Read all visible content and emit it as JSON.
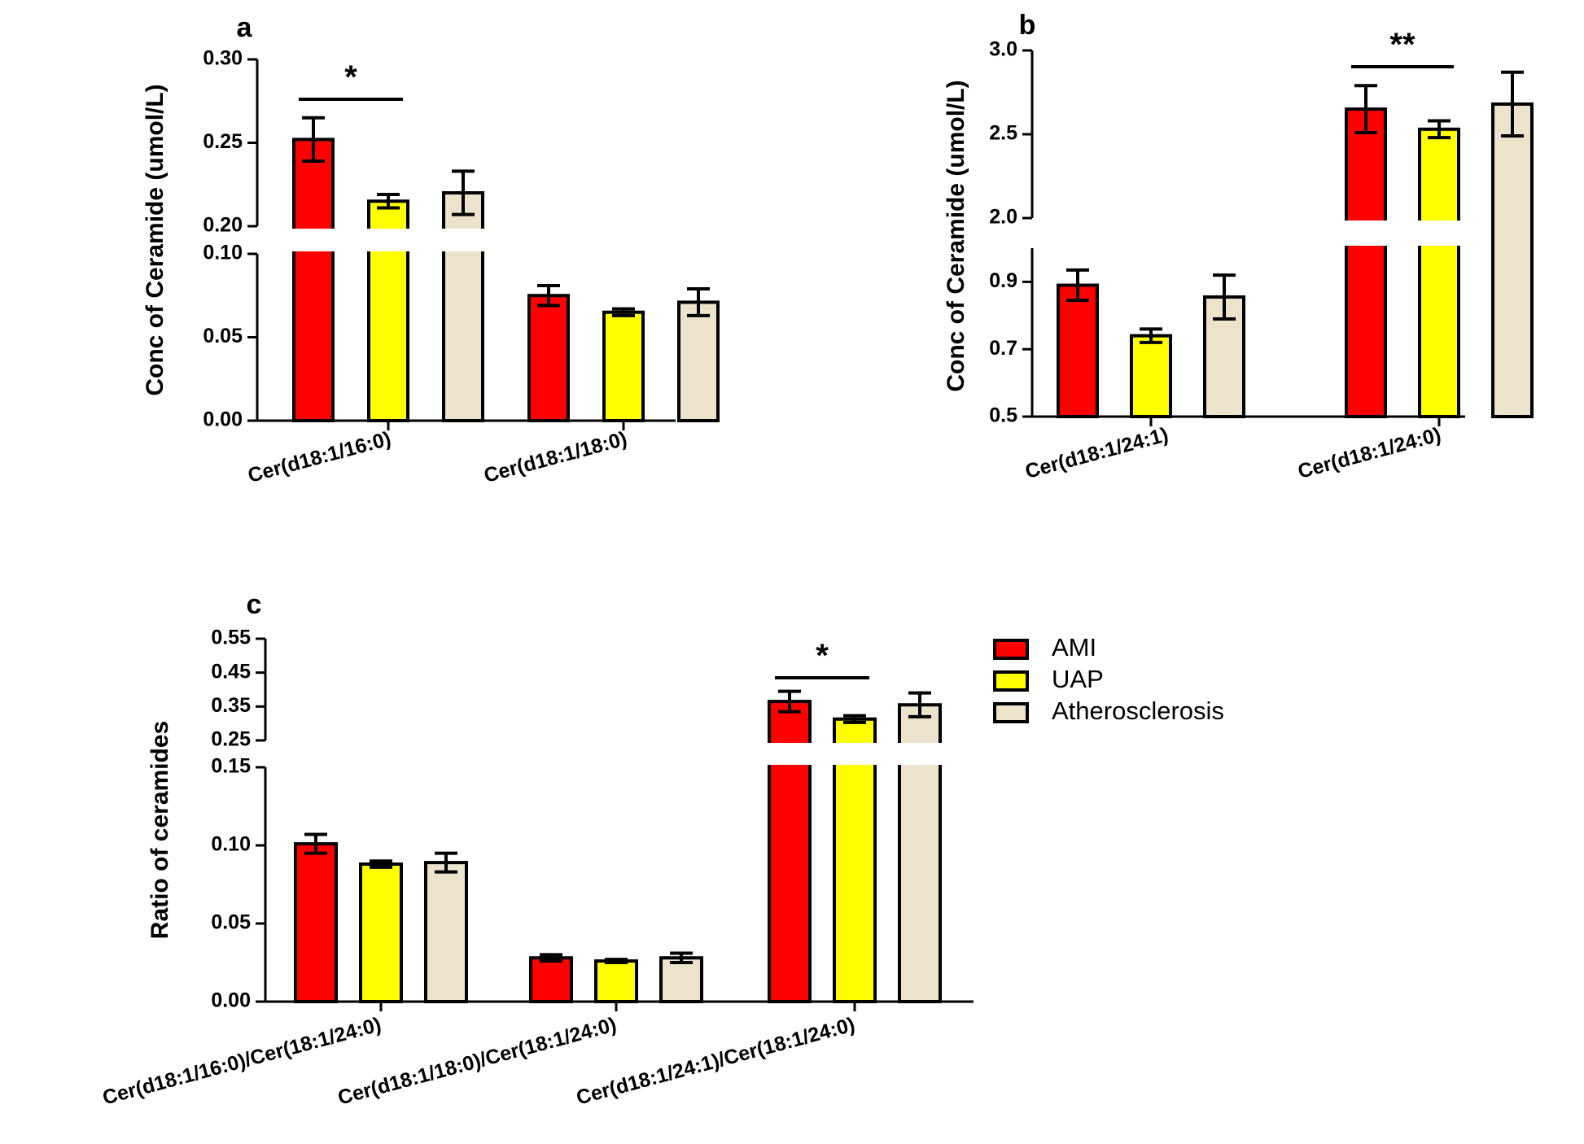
{
  "colors": {
    "AMI": "#ff0000",
    "UAP": "#ffff00",
    "Atherosclerosis": "#ebe3cc",
    "axis": "#000000"
  },
  "legend": {
    "placement": "right of panel c",
    "items": [
      {
        "label": "AMI",
        "color": "#ff0000"
      },
      {
        "label": "UAP",
        "color": "#ffff00"
      },
      {
        "label": "Atherosclerosis",
        "color": "#ebe3cc"
      }
    ]
  },
  "chart_data": [
    {
      "panel": "a",
      "type": "bar",
      "ylabel": "Conc of Ceramide (umol/L)",
      "broken_axis": true,
      "ylim_lower": [
        0,
        0.1
      ],
      "ylim_upper": [
        0.2,
        0.3
      ],
      "yticks_lower": [
        "0.00",
        "0.05",
        "0.10"
      ],
      "yticks_upper": [
        "0.20",
        "0.25",
        "0.30"
      ],
      "categories": [
        "Cer(d18:1/16:0)",
        "Cer(d18:1/18:0)"
      ],
      "series": [
        {
          "name": "AMI",
          "values": [
            0.252,
            0.075
          ],
          "errors": [
            0.013,
            0.006
          ]
        },
        {
          "name": "UAP",
          "values": [
            0.215,
            0.065
          ],
          "errors": [
            0.004,
            0.002
          ]
        },
        {
          "name": "Atherosclerosis",
          "values": [
            0.22,
            0.071
          ],
          "errors": [
            0.013,
            0.008
          ]
        }
      ],
      "significance": [
        {
          "category": 0,
          "from": "AMI",
          "to": "UAP",
          "label": "*"
        }
      ],
      "grid": false
    },
    {
      "panel": "b",
      "type": "bar",
      "ylabel": "Conc of Ceramide (umol/L)",
      "broken_axis": true,
      "ylim_lower": [
        0.5,
        1.0
      ],
      "ylim_upper": [
        2.0,
        3.0
      ],
      "yticks_lower": [
        "0.5",
        "0.7",
        "0.9"
      ],
      "yticks_upper": [
        "2.0",
        "2.5",
        "3.0"
      ],
      "categories": [
        "Cer(d18:1/24:1)",
        "Cer(d18:1/24:0)"
      ],
      "series": [
        {
          "name": "AMI",
          "values": [
            0.89,
            2.65
          ],
          "errors": [
            0.045,
            0.14
          ]
        },
        {
          "name": "UAP",
          "values": [
            0.74,
            2.53
          ],
          "errors": [
            0.02,
            0.05
          ]
        },
        {
          "name": "Atherosclerosis",
          "values": [
            0.855,
            2.68
          ],
          "errors": [
            0.065,
            0.19
          ]
        }
      ],
      "significance": [
        {
          "category": 1,
          "from": "AMI",
          "to": "UAP",
          "label": "**"
        }
      ],
      "grid": false
    },
    {
      "panel": "c",
      "type": "bar",
      "ylabel": "Ratio of ceramides",
      "broken_axis": true,
      "ylim_lower": [
        0,
        0.15
      ],
      "ylim_upper": [
        0.25,
        0.55
      ],
      "yticks_lower": [
        "0.00",
        "0.05",
        "0.10",
        "0.15"
      ],
      "yticks_upper": [
        "0.25",
        "0.35",
        "0.45",
        "0.55"
      ],
      "categories": [
        "Cer(d18:1/16:0)/Cer(18:1/24:0)",
        "Cer(d18:1/18:0)/Cer(18:1/24:0)",
        "Cer(d18:1/24:1)/Cer(18:1/24:0)"
      ],
      "series": [
        {
          "name": "AMI",
          "values": [
            0.101,
            0.028,
            0.365
          ],
          "errors": [
            0.006,
            0.002,
            0.03
          ]
        },
        {
          "name": "UAP",
          "values": [
            0.088,
            0.026,
            0.313
          ],
          "errors": [
            0.002,
            0.001,
            0.01
          ]
        },
        {
          "name": "Atherosclerosis",
          "values": [
            0.089,
            0.028,
            0.355
          ],
          "errors": [
            0.006,
            0.003,
            0.035
          ]
        }
      ],
      "significance": [
        {
          "category": 2,
          "from": "AMI",
          "to": "UAP",
          "label": "*"
        }
      ],
      "grid": false
    }
  ]
}
